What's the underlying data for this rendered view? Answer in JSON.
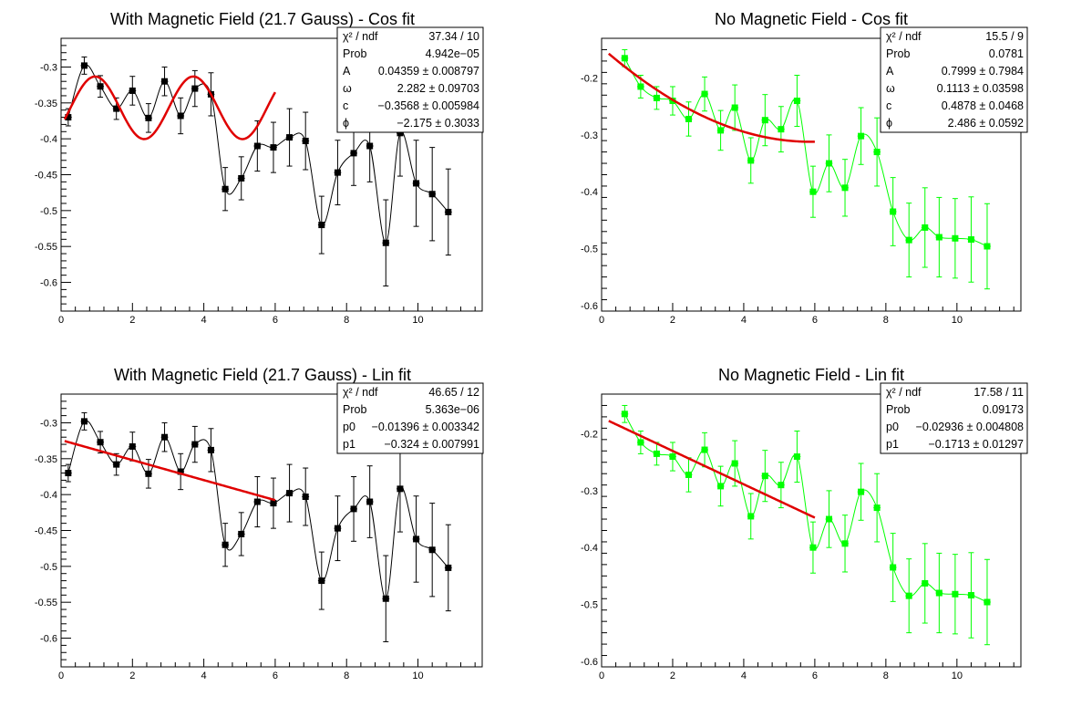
{
  "chart_data": [
    {
      "type": "scatter",
      "title": "With Magnetic Field (21.7 Gauss) - Cos fit",
      "xlim": [
        0,
        11.8
      ],
      "ylim": [
        -0.64,
        -0.26
      ],
      "xticks": [
        0,
        2,
        4,
        6,
        8,
        10
      ],
      "yticks": [
        -0.6,
        -0.55,
        -0.5,
        -0.45,
        -0.4,
        -0.35,
        -0.3
      ],
      "ytick_labels": [
        "-0.6",
        "-0.55",
        "-0.5",
        "-0.45",
        "-0.4",
        "-0.35",
        "-0.3"
      ],
      "marker_color": "#000000",
      "fit_color": "#e00000",
      "series": [
        {
          "x": [
            0.2,
            0.65,
            1.1,
            1.55,
            2.0,
            2.45,
            2.9,
            3.35,
            3.75,
            4.2,
            4.6,
            5.05,
            5.5,
            5.95,
            6.4,
            6.85,
            7.3,
            7.75,
            8.2,
            8.65,
            9.1,
            9.5,
            9.95,
            10.4,
            10.85
          ],
          "y": [
            -0.37,
            -0.298,
            -0.327,
            -0.358,
            -0.333,
            -0.371,
            -0.32,
            -0.368,
            -0.33,
            -0.338,
            -0.47,
            -0.455,
            -0.41,
            -0.412,
            -0.398,
            -0.403,
            -0.52,
            -0.447,
            -0.42,
            -0.41,
            -0.545,
            -0.392,
            -0.462,
            -0.477,
            -0.502
          ],
          "yerr": [
            0.012,
            0.012,
            0.015,
            0.015,
            0.02,
            0.02,
            0.02,
            0.025,
            0.025,
            0.03,
            0.03,
            0.03,
            0.035,
            0.035,
            0.04,
            0.04,
            0.04,
            0.045,
            0.045,
            0.05,
            0.06,
            0.06,
            0.06,
            0.065,
            0.06
          ],
          "xerr": [
            0.1,
            0.1,
            0.1,
            0.1,
            0.1,
            0.1,
            0.1,
            0.1,
            0.1,
            0.1,
            0.1,
            0.1,
            0.1,
            0.1,
            0.1,
            0.1,
            0.1,
            0.1,
            0.1,
            0.1,
            0.1,
            0.1,
            0.1,
            0.1,
            0.1
          ]
        }
      ],
      "fit": {
        "model": "cos",
        "xmin": 0.1,
        "xmax": 6.0,
        "A": 0.04359,
        "omega": 2.282,
        "c": -0.3568,
        "phi": -2.175
      },
      "stats": [
        [
          "χ² / ndf",
          "37.34 / 10"
        ],
        [
          "Prob",
          "4.942e−05"
        ],
        [
          "A",
          "0.04359 ± 0.008797"
        ],
        [
          "ω",
          "2.282 ± 0.09703"
        ],
        [
          "c",
          "−0.3568 ± 0.005984"
        ],
        [
          "ϕ",
          "−2.175 ± 0.3033"
        ]
      ]
    },
    {
      "type": "scatter",
      "title": "No Magnetic Field - Cos fit",
      "xlim": [
        0,
        11.8
      ],
      "ylim": [
        -0.61,
        -0.13
      ],
      "xticks": [
        0,
        2,
        4,
        6,
        8,
        10
      ],
      "yticks": [
        -0.6,
        -0.5,
        -0.4,
        -0.3,
        -0.2
      ],
      "ytick_labels": [
        "-0.6",
        "-0.5",
        "-0.4",
        "-0.3",
        "-0.2"
      ],
      "marker_color": "#00ff00",
      "fit_color": "#e00000",
      "series": [
        {
          "x": [
            0.65,
            1.1,
            1.55,
            2.0,
            2.45,
            2.9,
            3.35,
            3.75,
            4.2,
            4.6,
            5.05,
            5.5,
            5.95,
            6.4,
            6.85,
            7.3,
            7.75,
            8.2,
            8.65,
            9.1,
            9.5,
            9.95,
            10.4,
            10.85
          ],
          "y": [
            -0.165,
            -0.215,
            -0.235,
            -0.24,
            -0.272,
            -0.228,
            -0.292,
            -0.252,
            -0.345,
            -0.274,
            -0.29,
            -0.24,
            -0.4,
            -0.35,
            -0.393,
            -0.302,
            -0.33,
            -0.435,
            -0.485,
            -0.463,
            -0.48,
            -0.482,
            -0.484,
            -0.496
          ],
          "yerr": [
            0.015,
            0.02,
            0.02,
            0.025,
            0.03,
            0.03,
            0.035,
            0.04,
            0.04,
            0.045,
            0.04,
            0.045,
            0.045,
            0.05,
            0.05,
            0.05,
            0.06,
            0.06,
            0.065,
            0.07,
            0.07,
            0.07,
            0.075,
            0.075
          ],
          "xerr": [
            0.1,
            0.1,
            0.1,
            0.1,
            0.1,
            0.1,
            0.1,
            0.1,
            0.1,
            0.1,
            0.1,
            0.1,
            0.1,
            0.1,
            0.1,
            0.1,
            0.1,
            0.1,
            0.1,
            0.1,
            0.1,
            0.1,
            0.1,
            0.1
          ]
        }
      ],
      "fit": {
        "model": "cos",
        "xmin": 0.2,
        "xmax": 6.0,
        "A": 0.7999,
        "omega": 0.1113,
        "c": 0.4878,
        "phi": 2.486
      },
      "stats": [
        [
          "χ² / ndf",
          "15.5 / 9"
        ],
        [
          "Prob",
          "0.0781"
        ],
        [
          "A",
          "0.7999 ± 0.7984"
        ],
        [
          "ω",
          "0.1113 ± 0.03598"
        ],
        [
          "c",
          "0.4878 ± 0.0468"
        ],
        [
          "ϕ",
          "2.486 ± 0.0592"
        ]
      ]
    },
    {
      "type": "scatter",
      "title": "With Magnetic Field (21.7 Gauss) - Lin fit",
      "xlim": [
        0,
        11.8
      ],
      "ylim": [
        -0.64,
        -0.26
      ],
      "xticks": [
        0,
        2,
        4,
        6,
        8,
        10
      ],
      "yticks": [
        -0.6,
        -0.55,
        -0.5,
        -0.45,
        -0.4,
        -0.35,
        -0.3
      ],
      "ytick_labels": [
        "-0.6",
        "-0.55",
        "-0.5",
        "-0.45",
        "-0.4",
        "-0.35",
        "-0.3"
      ],
      "marker_color": "#000000",
      "fit_color": "#e00000",
      "series": [
        {
          "x": [
            0.2,
            0.65,
            1.1,
            1.55,
            2.0,
            2.45,
            2.9,
            3.35,
            3.75,
            4.2,
            4.6,
            5.05,
            5.5,
            5.95,
            6.4,
            6.85,
            7.3,
            7.75,
            8.2,
            8.65,
            9.1,
            9.5,
            9.95,
            10.4,
            10.85
          ],
          "y": [
            -0.37,
            -0.298,
            -0.327,
            -0.358,
            -0.333,
            -0.371,
            -0.32,
            -0.368,
            -0.33,
            -0.338,
            -0.47,
            -0.455,
            -0.41,
            -0.412,
            -0.398,
            -0.403,
            -0.52,
            -0.447,
            -0.42,
            -0.41,
            -0.545,
            -0.392,
            -0.462,
            -0.477,
            -0.502
          ],
          "yerr": [
            0.012,
            0.012,
            0.015,
            0.015,
            0.02,
            0.02,
            0.02,
            0.025,
            0.025,
            0.03,
            0.03,
            0.03,
            0.035,
            0.035,
            0.04,
            0.04,
            0.04,
            0.045,
            0.045,
            0.05,
            0.06,
            0.06,
            0.06,
            0.065,
            0.06
          ],
          "xerr": [
            0.1,
            0.1,
            0.1,
            0.1,
            0.1,
            0.1,
            0.1,
            0.1,
            0.1,
            0.1,
            0.1,
            0.1,
            0.1,
            0.1,
            0.1,
            0.1,
            0.1,
            0.1,
            0.1,
            0.1,
            0.1,
            0.1,
            0.1,
            0.1,
            0.1
          ]
        }
      ],
      "fit": {
        "model": "linear",
        "xmin": 0.1,
        "xmax": 6.0,
        "p0": -0.01396,
        "p1": -0.324
      },
      "stats": [
        [
          "χ² / ndf",
          "46.65 / 12"
        ],
        [
          "Prob",
          "5.363e−06"
        ],
        [
          "p0",
          "−0.01396 ± 0.003342"
        ],
        [
          "p1",
          "−0.324 ± 0.007991"
        ]
      ]
    },
    {
      "type": "scatter",
      "title": "No Magnetic Field - Lin fit",
      "xlim": [
        0,
        11.8
      ],
      "ylim": [
        -0.61,
        -0.13
      ],
      "xticks": [
        0,
        2,
        4,
        6,
        8,
        10
      ],
      "yticks": [
        -0.6,
        -0.5,
        -0.4,
        -0.3,
        -0.2
      ],
      "ytick_labels": [
        "-0.6",
        "-0.5",
        "-0.4",
        "-0.3",
        "-0.2"
      ],
      "marker_color": "#00ff00",
      "fit_color": "#e00000",
      "series": [
        {
          "x": [
            0.65,
            1.1,
            1.55,
            2.0,
            2.45,
            2.9,
            3.35,
            3.75,
            4.2,
            4.6,
            5.05,
            5.5,
            5.95,
            6.4,
            6.85,
            7.3,
            7.75,
            8.2,
            8.65,
            9.1,
            9.5,
            9.95,
            10.4,
            10.85
          ],
          "y": [
            -0.165,
            -0.215,
            -0.235,
            -0.24,
            -0.272,
            -0.228,
            -0.292,
            -0.252,
            -0.345,
            -0.274,
            -0.29,
            -0.24,
            -0.4,
            -0.35,
            -0.393,
            -0.302,
            -0.33,
            -0.435,
            -0.485,
            -0.463,
            -0.48,
            -0.482,
            -0.484,
            -0.496
          ],
          "yerr": [
            0.015,
            0.02,
            0.02,
            0.025,
            0.03,
            0.03,
            0.035,
            0.04,
            0.04,
            0.045,
            0.04,
            0.045,
            0.045,
            0.05,
            0.05,
            0.05,
            0.06,
            0.06,
            0.065,
            0.07,
            0.07,
            0.07,
            0.075,
            0.075
          ],
          "xerr": [
            0.1,
            0.1,
            0.1,
            0.1,
            0.1,
            0.1,
            0.1,
            0.1,
            0.1,
            0.1,
            0.1,
            0.1,
            0.1,
            0.1,
            0.1,
            0.1,
            0.1,
            0.1,
            0.1,
            0.1,
            0.1,
            0.1,
            0.1,
            0.1
          ]
        }
      ],
      "fit": {
        "model": "linear",
        "xmin": 0.2,
        "xmax": 6.0,
        "p0": -0.02936,
        "p1": -0.1713
      },
      "stats": [
        [
          "χ² / ndf",
          "17.58 / 11"
        ],
        [
          "Prob",
          "0.09173"
        ],
        [
          "p0",
          "−0.02936 ± 0.004808"
        ],
        [
          "p1",
          "−0.1713 ± 0.01297"
        ]
      ]
    }
  ]
}
